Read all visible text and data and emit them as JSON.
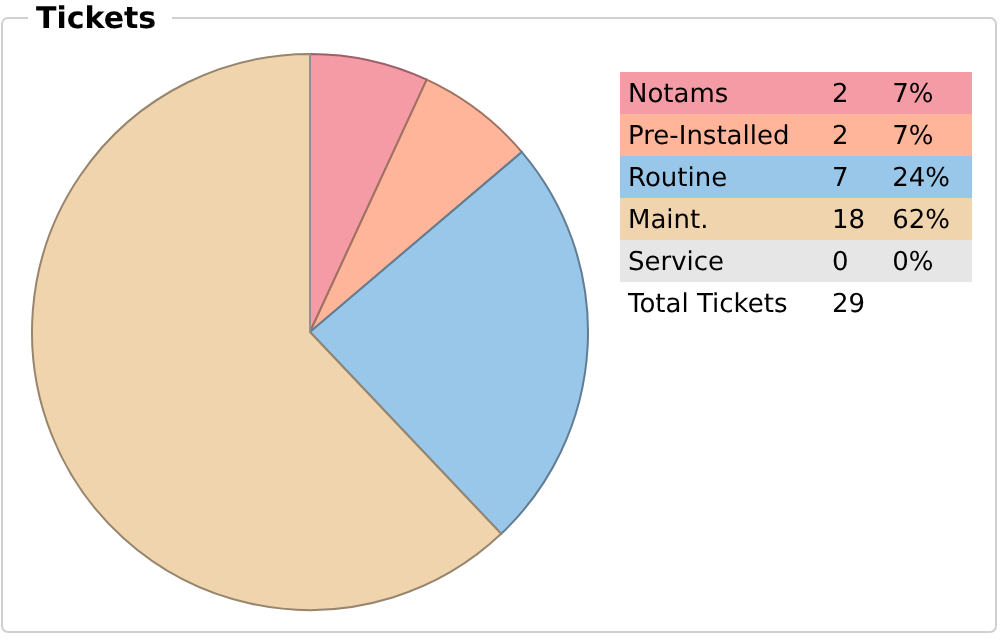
{
  "chart_data": {
    "type": "pie",
    "title": "Tickets",
    "categories": [
      "Notams",
      "Pre-Installed",
      "Routine",
      "Maint.",
      "Service"
    ],
    "values": [
      2,
      2,
      7,
      18,
      0
    ],
    "colors": [
      "#f59ba6",
      "#ffb59a",
      "#99c7e9",
      "#f0d4ae",
      "#e6e6e6"
    ],
    "value_labels": [
      "2 7%",
      "2 7%",
      "7 24%",
      "18 62%",
      "0 0%"
    ],
    "legend": "top right",
    "annotations": [
      "Total Tickets"
    ],
    "totals": [
      "29"
    ]
  }
}
